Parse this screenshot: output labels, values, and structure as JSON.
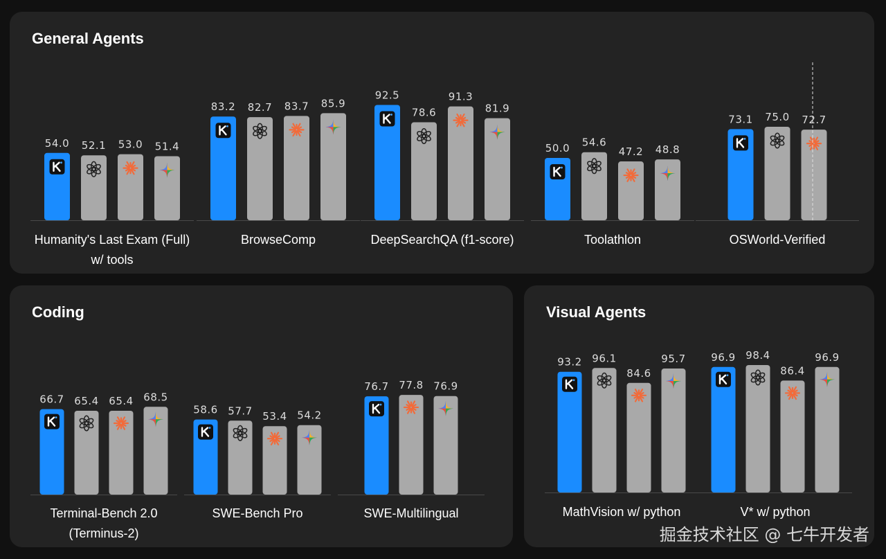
{
  "panels": [
    {
      "id": "general",
      "title": "General Agents"
    },
    {
      "id": "coding",
      "title": "Coding"
    },
    {
      "id": "visual",
      "title": "Visual Agents"
    }
  ],
  "watermark": "掘金技术社区 @ 七牛开发者",
  "colors": {
    "highlight_bar": "#1a8cff",
    "other_bar": "#a9a9a9",
    "panel_bg": "#232323",
    "page_bg": "#111111",
    "label_text": "#ffffff",
    "value_text": "#dddddd",
    "icon_kimi_bg": "#111111",
    "icon_claude": "#f26b3a"
  },
  "chart_data": [
    {
      "panel": "general",
      "type": "bar",
      "groups": [
        {
          "label": [
            "Humanity's Last Exam (Full)",
            "w/ tools"
          ],
          "bars": [
            {
              "model": "kimi",
              "value": 54.0
            },
            {
              "model": "gpt",
              "value": 52.1
            },
            {
              "model": "claude",
              "value": 53.0
            },
            {
              "model": "gemini",
              "value": 51.4
            }
          ]
        },
        {
          "label": [
            "BrowseComp"
          ],
          "bars": [
            {
              "model": "kimi",
              "value": 83.2
            },
            {
              "model": "gpt",
              "value": 82.7
            },
            {
              "model": "claude",
              "value": 83.7
            },
            {
              "model": "gemini",
              "value": 85.9
            }
          ]
        },
        {
          "label": [
            "DeepSearchQA (f1-score)"
          ],
          "bars": [
            {
              "model": "kimi",
              "value": 92.5
            },
            {
              "model": "gpt",
              "value": 78.6
            },
            {
              "model": "claude",
              "value": 91.3
            },
            {
              "model": "gemini",
              "value": 81.9
            }
          ]
        },
        {
          "label": [
            "Toolathlon"
          ],
          "bars": [
            {
              "model": "kimi",
              "value": 50.0
            },
            {
              "model": "gpt",
              "value": 54.6
            },
            {
              "model": "claude",
              "value": 47.2
            },
            {
              "model": "gemini",
              "value": 48.8
            }
          ]
        },
        {
          "label": [
            "OSWorld-Verified"
          ],
          "bars": [
            {
              "model": "kimi",
              "value": 73.1
            },
            {
              "model": "gpt",
              "value": 75.0
            },
            {
              "model": "claude",
              "value": 72.7
            }
          ]
        }
      ]
    },
    {
      "panel": "coding",
      "type": "bar",
      "groups": [
        {
          "label": [
            "Terminal-Bench 2.0",
            "(Terminus-2)"
          ],
          "bars": [
            {
              "model": "kimi",
              "value": 66.7
            },
            {
              "model": "gpt",
              "value": 65.4
            },
            {
              "model": "claude",
              "value": 65.4
            },
            {
              "model": "gemini",
              "value": 68.5
            }
          ]
        },
        {
          "label": [
            "SWE-Bench Pro"
          ],
          "bars": [
            {
              "model": "kimi",
              "value": 58.6
            },
            {
              "model": "gpt",
              "value": 57.7
            },
            {
              "model": "claude",
              "value": 53.4
            },
            {
              "model": "gemini",
              "value": 54.2
            }
          ]
        },
        {
          "label": [
            "SWE-Multilingual"
          ],
          "bars": [
            {
              "model": "kimi",
              "value": 76.7
            },
            {
              "model": "claude",
              "value": 77.8
            },
            {
              "model": "gemini",
              "value": 76.9
            }
          ]
        }
      ]
    },
    {
      "panel": "visual",
      "type": "bar",
      "groups": [
        {
          "label": [
            "MathVision w/ python"
          ],
          "bars": [
            {
              "model": "kimi",
              "value": 93.2
            },
            {
              "model": "gpt",
              "value": 96.1
            },
            {
              "model": "claude",
              "value": 84.6
            },
            {
              "model": "gemini",
              "value": 95.7
            }
          ]
        },
        {
          "label": [
            "V* w/ python"
          ],
          "bars": [
            {
              "model": "kimi",
              "value": 96.9
            },
            {
              "model": "gpt",
              "value": 98.4
            },
            {
              "model": "claude",
              "value": 86.4
            },
            {
              "model": "gemini",
              "value": 96.9
            }
          ]
        }
      ]
    }
  ]
}
